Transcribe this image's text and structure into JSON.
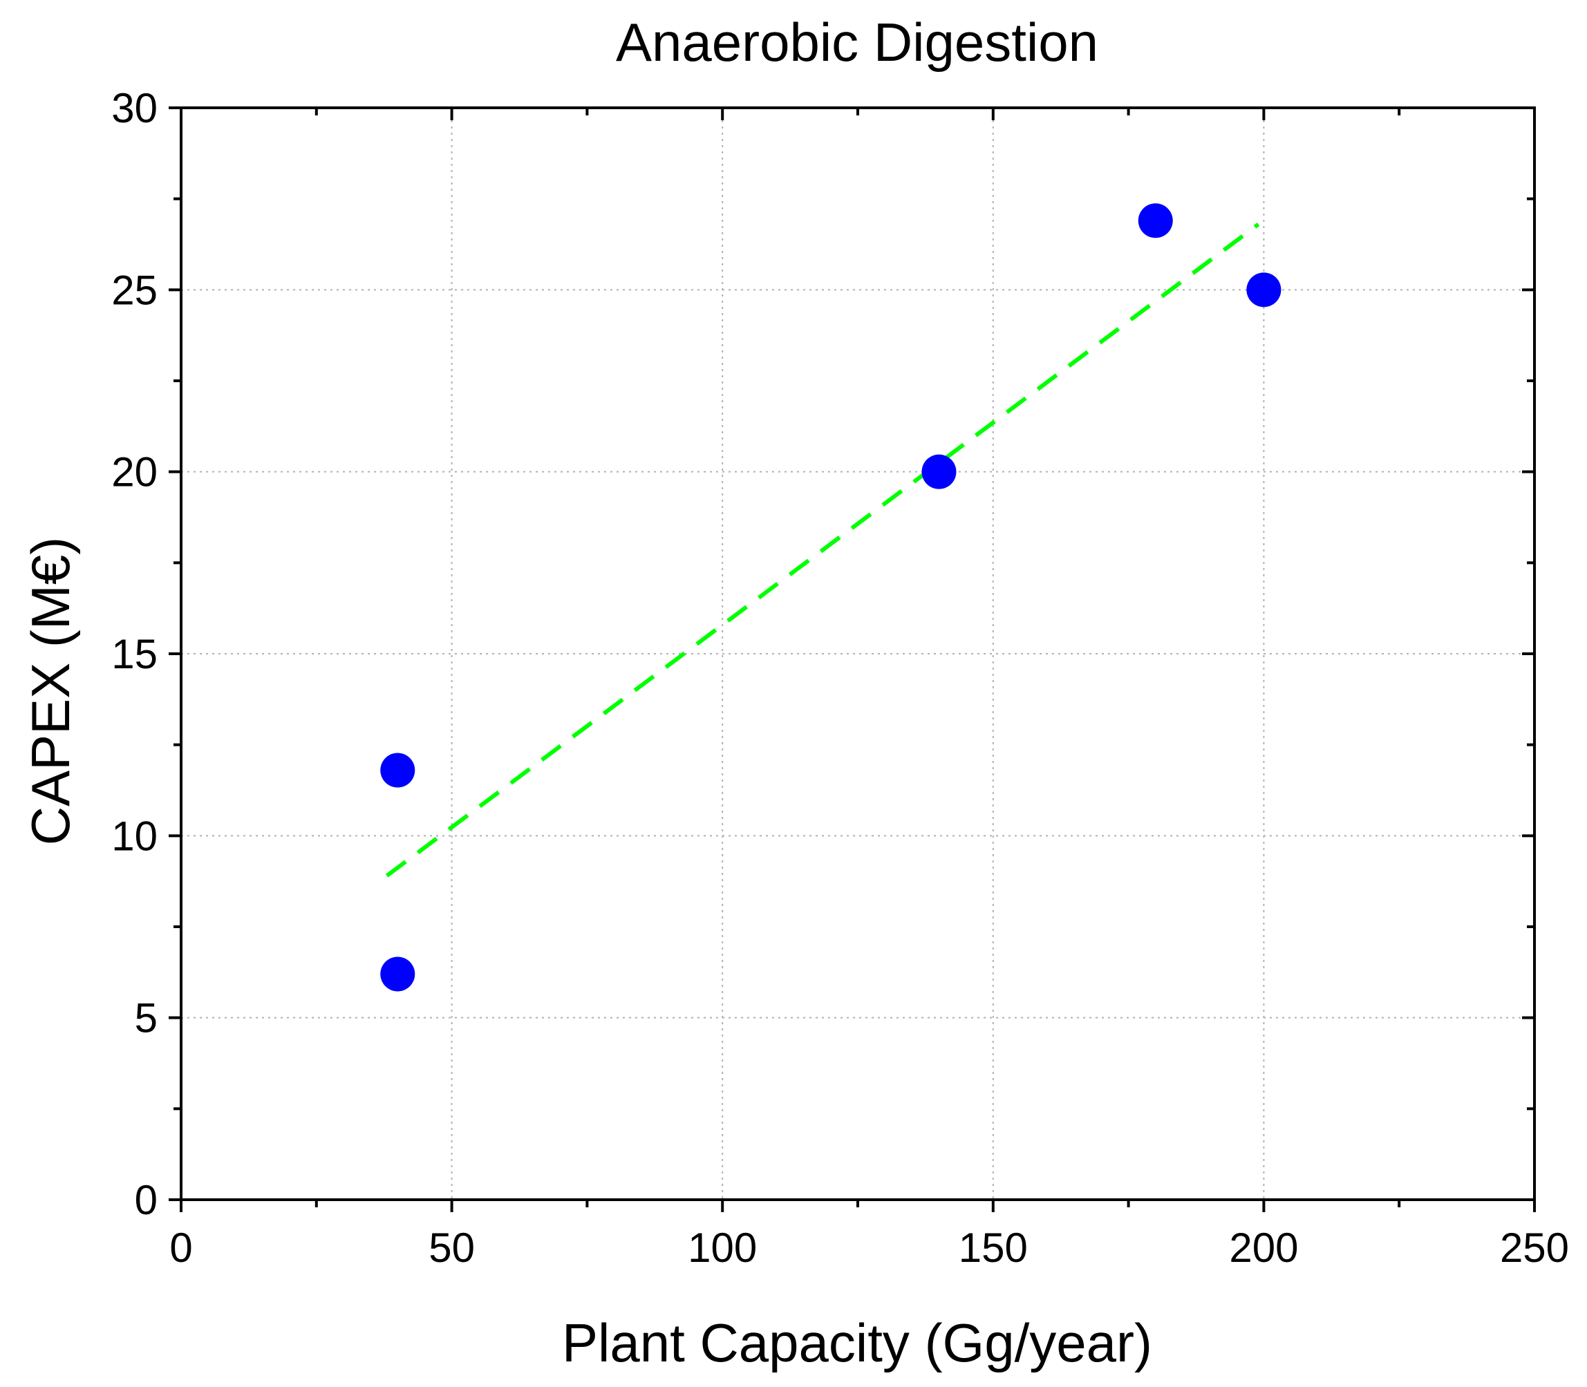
{
  "chart_data": {
    "type": "scatter",
    "title": "Anaerobic Digestion",
    "xlabel": "Plant Capacity (Gg/year)",
    "ylabel": "CAPEX (M€)",
    "xlim": [
      0,
      250
    ],
    "ylim": [
      0,
      30
    ],
    "x_ticks": [
      0,
      50,
      100,
      150,
      200,
      250
    ],
    "y_ticks": [
      0,
      5,
      10,
      15,
      20,
      25,
      30
    ],
    "x_tick_labels": [
      "0",
      "50",
      "100",
      "150",
      "200",
      "250"
    ],
    "y_tick_labels": [
      "0",
      "5",
      "10",
      "15",
      "20",
      "25",
      "30"
    ],
    "grid": true,
    "series": [
      {
        "name": "data",
        "kind": "scatter",
        "color": "#0000ff",
        "x": [
          40,
          40,
          140,
          180,
          200
        ],
        "y": [
          11.8,
          6.2,
          20.0,
          26.9,
          25.0
        ]
      },
      {
        "name": "fit",
        "kind": "line",
        "style": "dashed",
        "color": "#00ff00",
        "x": [
          38,
          199
        ],
        "y": [
          8.9,
          26.8
        ]
      }
    ]
  }
}
